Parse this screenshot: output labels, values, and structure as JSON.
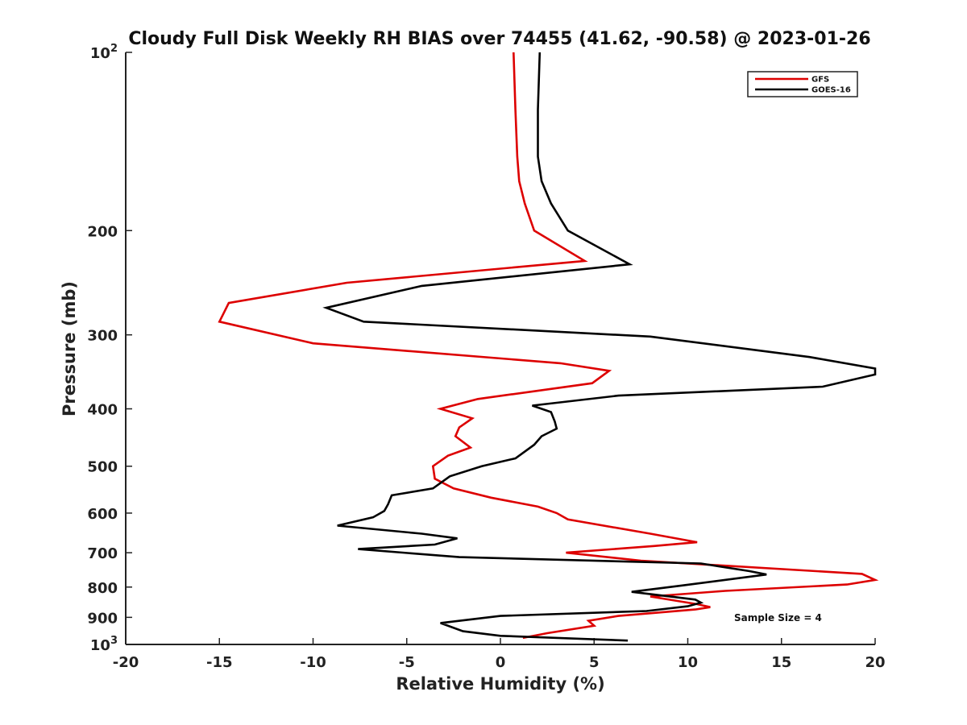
{
  "chart_data": {
    "type": "line",
    "title": "Cloudy Full Disk Weekly RH BIAS over 74455 (41.62, -90.58) @ 2023-01-26",
    "xlabel": "Relative Humidity (%)",
    "ylabel": "Pressure (mb)",
    "xlim": [
      -20,
      20
    ],
    "ylim": [
      100,
      1000
    ],
    "yscale": "log",
    "y_reversed": true,
    "grid": false,
    "legend_position": "top-right",
    "x_ticks": [
      -20,
      -15,
      -10,
      -5,
      0,
      5,
      10,
      15,
      20
    ],
    "x_tick_labels": [
      "-20",
      "-15",
      "-10",
      "-5",
      "0",
      "5",
      "10",
      "15",
      "20"
    ],
    "y_ticks": [
      {
        "value": 100,
        "label": "10",
        "sup": "2"
      },
      {
        "value": 200,
        "label": "200",
        "sup": ""
      },
      {
        "value": 300,
        "label": "300",
        "sup": ""
      },
      {
        "value": 400,
        "label": "400",
        "sup": ""
      },
      {
        "value": 500,
        "label": "500",
        "sup": ""
      },
      {
        "value": 600,
        "label": "600",
        "sup": ""
      },
      {
        "value": 700,
        "label": "700",
        "sup": ""
      },
      {
        "value": 800,
        "label": "800",
        "sup": ""
      },
      {
        "value": 900,
        "label": "900",
        "sup": ""
      },
      {
        "value": 1000,
        "label": "10",
        "sup": "3"
      }
    ],
    "annotation": "Sample Size = 4",
    "series": [
      {
        "name": "GFS",
        "color": "#dd0000",
        "points": [
          [
            0.7,
            100
          ],
          [
            0.8,
            125
          ],
          [
            0.9,
            150
          ],
          [
            1.0,
            165
          ],
          [
            1.3,
            180
          ],
          [
            1.8,
            200
          ],
          [
            4.5,
            225
          ],
          [
            -8.2,
            245
          ],
          [
            -14.5,
            265
          ],
          [
            -15.0,
            285
          ],
          [
            -10.0,
            310
          ],
          [
            3.2,
            335
          ],
          [
            5.8,
            345
          ],
          [
            4.9,
            362
          ],
          [
            -1.2,
            385
          ],
          [
            -3.2,
            400
          ],
          [
            -1.5,
            415
          ],
          [
            -2.2,
            430
          ],
          [
            -2.4,
            445
          ],
          [
            -1.6,
            465
          ],
          [
            -2.8,
            480
          ],
          [
            -3.6,
            500
          ],
          [
            -3.5,
            525
          ],
          [
            -2.5,
            545
          ],
          [
            -0.5,
            565
          ],
          [
            2.0,
            585
          ],
          [
            3.0,
            600
          ],
          [
            3.6,
            615
          ],
          [
            8.0,
            650
          ],
          [
            10.5,
            672
          ],
          [
            8.2,
            682
          ],
          [
            3.5,
            700
          ],
          [
            7.5,
            722
          ],
          [
            19.3,
            760
          ],
          [
            20.0,
            778
          ],
          [
            18.5,
            792
          ],
          [
            12.0,
            812
          ],
          [
            8.0,
            830
          ],
          [
            10.5,
            855
          ],
          [
            11.2,
            865
          ],
          [
            10.4,
            873
          ],
          [
            6.3,
            895
          ],
          [
            4.7,
            912
          ],
          [
            5.0,
            930
          ],
          [
            2.5,
            957
          ],
          [
            1.2,
            975
          ]
        ]
      },
      {
        "name": "GOES-16",
        "color": "#000000",
        "points": [
          [
            2.1,
            100
          ],
          [
            2.0,
            125
          ],
          [
            2.0,
            150
          ],
          [
            2.2,
            165
          ],
          [
            2.7,
            180
          ],
          [
            3.6,
            200
          ],
          [
            6.9,
            228
          ],
          [
            -4.2,
            248
          ],
          [
            -9.3,
            270
          ],
          [
            -7.3,
            285
          ],
          [
            8.0,
            302
          ],
          [
            16.5,
            327
          ],
          [
            20.0,
            342
          ],
          [
            20.0,
            350
          ],
          [
            17.2,
            367
          ],
          [
            6.3,
            380
          ],
          [
            1.7,
            395
          ],
          [
            2.7,
            405
          ],
          [
            2.9,
            420
          ],
          [
            3.0,
            432
          ],
          [
            2.2,
            445
          ],
          [
            1.8,
            460
          ],
          [
            0.8,
            485
          ],
          [
            -1.0,
            500
          ],
          [
            -2.7,
            520
          ],
          [
            -3.6,
            545
          ],
          [
            -5.8,
            560
          ],
          [
            -6.0,
            580
          ],
          [
            -6.2,
            595
          ],
          [
            -6.8,
            610
          ],
          [
            -8.7,
            630
          ],
          [
            -4.2,
            650
          ],
          [
            -2.3,
            662
          ],
          [
            -3.5,
            678
          ],
          [
            -7.6,
            690
          ],
          [
            -2.2,
            712
          ],
          [
            10.7,
            730
          ],
          [
            13.3,
            752
          ],
          [
            14.2,
            762
          ],
          [
            9.7,
            795
          ],
          [
            7.0,
            815
          ],
          [
            10.4,
            840
          ],
          [
            10.7,
            850
          ],
          [
            10.0,
            862
          ],
          [
            7.8,
            878
          ],
          [
            0.0,
            895
          ],
          [
            -3.2,
            920
          ],
          [
            -2.0,
            950
          ],
          [
            0.0,
            967
          ],
          [
            6.8,
            985
          ]
        ]
      }
    ]
  }
}
